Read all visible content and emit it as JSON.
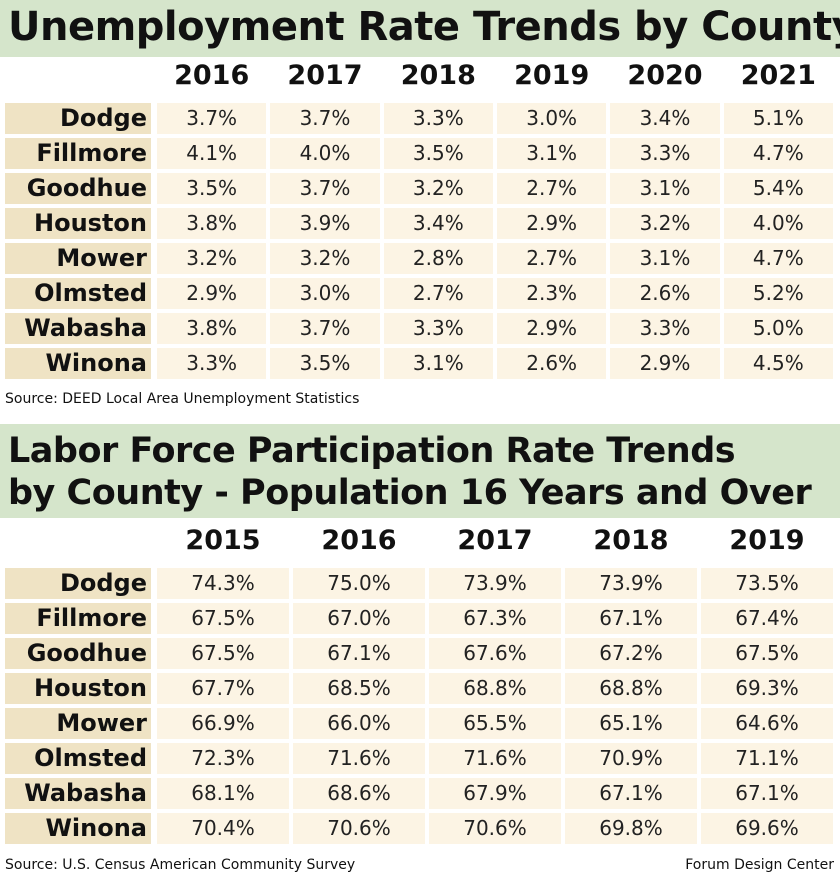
{
  "unemployment": {
    "title": "Unemployment Rate Trends by County",
    "years": [
      "2016",
      "2017",
      "2018",
      "2019",
      "2020",
      "2021"
    ],
    "rows": [
      {
        "county": "Dodge",
        "values": [
          "3.7%",
          "3.7%",
          "3.3%",
          "3.0%",
          "3.4%",
          "5.1%"
        ]
      },
      {
        "county": "Fillmore",
        "values": [
          "4.1%",
          "4.0%",
          "3.5%",
          "3.1%",
          "3.3%",
          "4.7%"
        ]
      },
      {
        "county": "Goodhue",
        "values": [
          "3.5%",
          "3.7%",
          "3.2%",
          "2.7%",
          "3.1%",
          "5.4%"
        ]
      },
      {
        "county": "Houston",
        "values": [
          "3.8%",
          "3.9%",
          "3.4%",
          "2.9%",
          "3.2%",
          "4.0%"
        ]
      },
      {
        "county": "Mower",
        "values": [
          "3.2%",
          "3.2%",
          "2.8%",
          "2.7%",
          "3.1%",
          "4.7%"
        ]
      },
      {
        "county": "Olmsted",
        "values": [
          "2.9%",
          "3.0%",
          "2.7%",
          "2.3%",
          "2.6%",
          "5.2%"
        ]
      },
      {
        "county": "Wabasha",
        "values": [
          "3.8%",
          "3.7%",
          "3.3%",
          "2.9%",
          "3.3%",
          "5.0%"
        ]
      },
      {
        "county": "Winona",
        "values": [
          "3.3%",
          "3.5%",
          "3.1%",
          "2.6%",
          "2.9%",
          "4.5%"
        ]
      }
    ],
    "source": "Source: DEED Local Area Unemployment Statistics"
  },
  "labor_force": {
    "title_lines": [
      "Labor Force Participation Rate Trends",
      "by County - Population 16 Years and Over"
    ],
    "years": [
      "2015",
      "2016",
      "2017",
      "2018",
      "2019"
    ],
    "rows": [
      {
        "county": "Dodge",
        "values": [
          "74.3%",
          "75.0%",
          "73.9%",
          "73.9%",
          "73.5%"
        ]
      },
      {
        "county": "Fillmore",
        "values": [
          "67.5%",
          "67.0%",
          "67.3%",
          "67.1%",
          "67.4%"
        ]
      },
      {
        "county": "Goodhue",
        "values": [
          "67.5%",
          "67.1%",
          "67.6%",
          "67.2%",
          "67.5%"
        ]
      },
      {
        "county": "Houston",
        "values": [
          "67.7%",
          "68.5%",
          "68.8%",
          "68.8%",
          "69.3%"
        ]
      },
      {
        "county": "Mower",
        "values": [
          "66.9%",
          "66.0%",
          "65.5%",
          "65.1%",
          "64.6%"
        ]
      },
      {
        "county": "Olmsted",
        "values": [
          "72.3%",
          "71.6%",
          "71.6%",
          "70.9%",
          "71.1%"
        ]
      },
      {
        "county": "Wabasha",
        "values": [
          "68.1%",
          "68.6%",
          "67.9%",
          "67.1%",
          "67.1%"
        ]
      },
      {
        "county": "Winona",
        "values": [
          "70.4%",
          "70.6%",
          "70.6%",
          "69.8%",
          "69.6%"
        ]
      }
    ],
    "source": "Source: U.S. Census American Community Survey"
  },
  "credit": "Forum Design Center"
}
